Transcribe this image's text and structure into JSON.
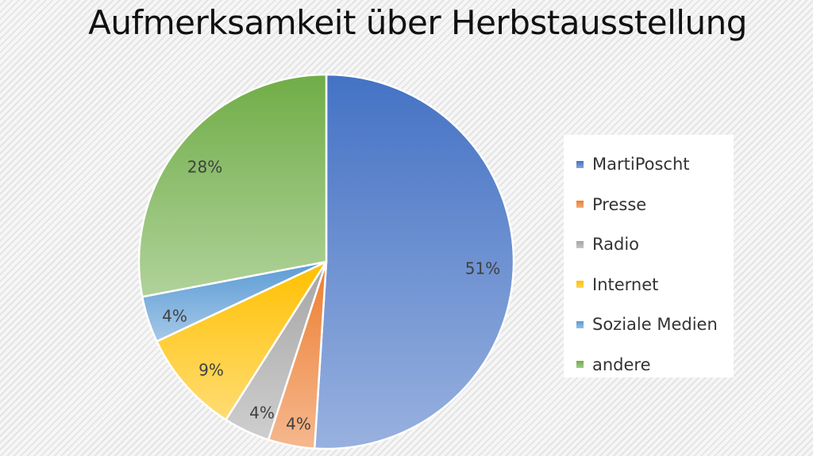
{
  "chart_data": {
    "type": "pie",
    "title": "Aufmerksamkeit über Herbstausstellung",
    "categories": [
      "MartiPoscht",
      "Presse",
      "Radio",
      "Internet",
      "Soziale Medien",
      "andere"
    ],
    "values": [
      51,
      4,
      4,
      9,
      4,
      28
    ],
    "data_labels": [
      "51%",
      "4%",
      "4%",
      "9%",
      "4%",
      "28%"
    ],
    "colors": [
      "#4472c4",
      "#ed7d31",
      "#a5a5a5",
      "#ffc000",
      "#5b9bd5",
      "#70ad47"
    ],
    "legend_position": "right"
  }
}
